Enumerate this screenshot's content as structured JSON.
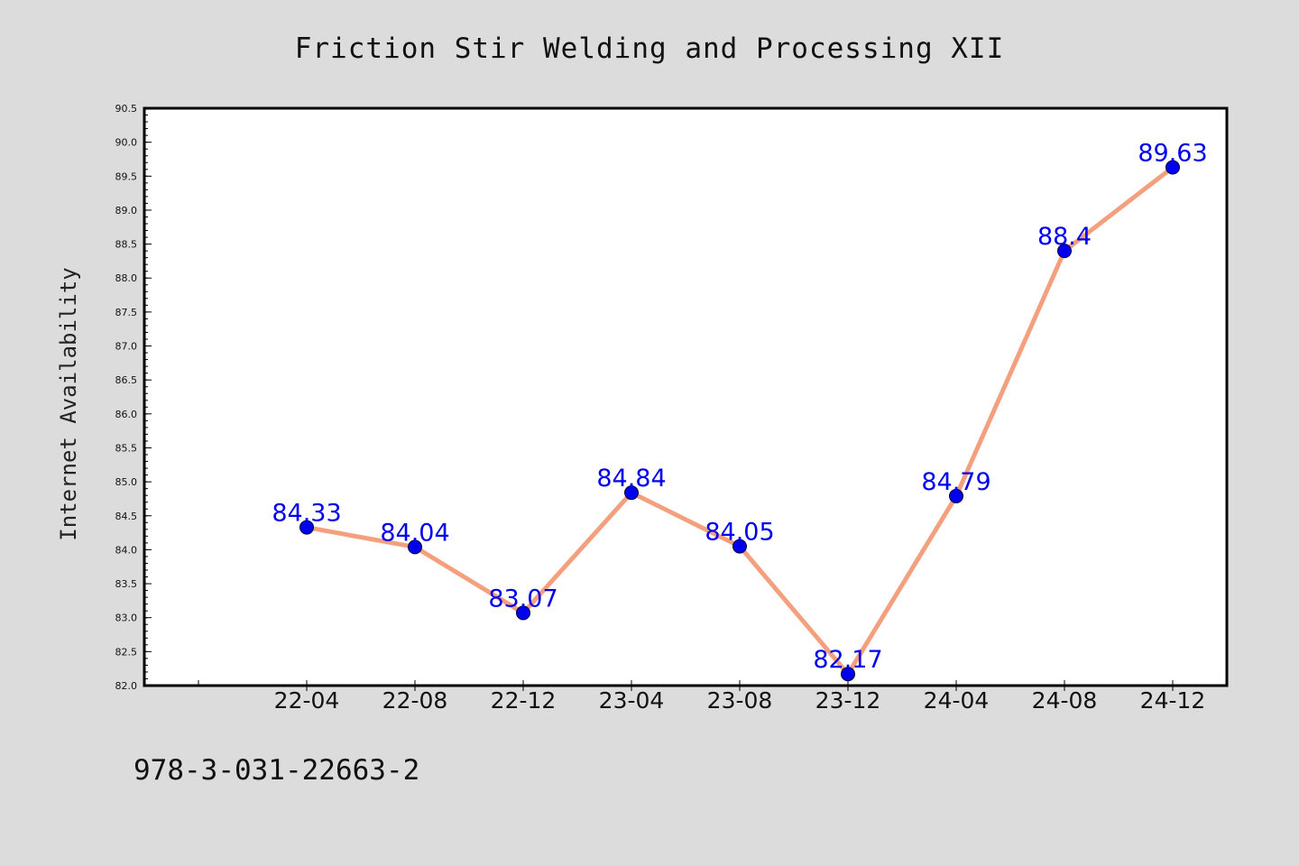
{
  "chart_data": {
    "type": "line",
    "title": "Friction Stir Welding and Processing XII",
    "xlabel": "",
    "ylabel": "Internet Availability",
    "categories": [
      "22-04",
      "22-08",
      "22-12",
      "23-04",
      "23-08",
      "23-12",
      "24-04",
      "24-08",
      "24-12"
    ],
    "series": [
      {
        "values": [
          84.33,
          84.04,
          83.07,
          84.84,
          84.05,
          82.17,
          84.79,
          88.4,
          89.63
        ],
        "data_labels": [
          "84.33",
          "84.04",
          "83.07",
          "84.84",
          "84.05",
          "82.17",
          "84.79",
          "88.4",
          "89.63"
        ]
      }
    ],
    "ylim": [
      82.0,
      90.5
    ],
    "yticks": [
      "82.0",
      "82.5",
      "83.0",
      "83.5",
      "84.0",
      "84.5",
      "85.0",
      "85.5",
      "86.0",
      "86.5",
      "87.0",
      "87.5",
      "88.0",
      "88.5",
      "89.0",
      "89.5",
      "90.0",
      "90.5"
    ],
    "grid": false,
    "legend": "none",
    "colors": {
      "line": "#f4a07e",
      "marker": "#0000ee",
      "data_label": "#0000ee",
      "background": "#dcdcdc",
      "plot_background": "#ffffff"
    }
  },
  "footer": {
    "isbn": "978-3-031-22663-2"
  }
}
